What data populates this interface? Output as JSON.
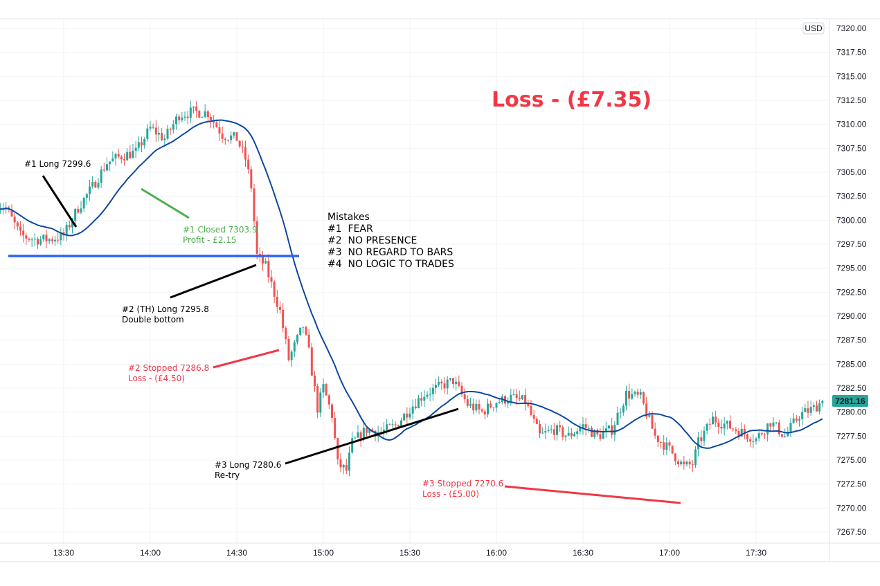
{
  "chart_data": {
    "type": "candlestick",
    "currency": "USD",
    "interval_minutes": 1,
    "ylim": [
      7266,
      7322
    ],
    "y_ticks": [
      "7320.00",
      "7317.50",
      "7315.00",
      "7312.50",
      "7310.00",
      "7307.50",
      "7305.00",
      "7302.50",
      "7300.00",
      "7297.50",
      "7295.00",
      "7292.50",
      "7290.00",
      "7287.50",
      "7285.00",
      "7282.50",
      "7280.00",
      "7277.50",
      "7275.00",
      "7272.50",
      "7270.00",
      "7267.50"
    ],
    "x_ticks": [
      "13:30",
      "14:00",
      "14:30",
      "15:00",
      "15:30",
      "16:00",
      "16:30",
      "17:00",
      "17:30"
    ],
    "last_price": "7281.16",
    "close_path_minutes_since_13": [
      7,
      10,
      15,
      20,
      25,
      30,
      35,
      40,
      45,
      50,
      55,
      60,
      65,
      70,
      75,
      80,
      85,
      90,
      93,
      95,
      97,
      100,
      105,
      108,
      110,
      113,
      115,
      118,
      120,
      123,
      125,
      128,
      130,
      135,
      140,
      145,
      150,
      155,
      160,
      165,
      170,
      175,
      180,
      185,
      190,
      195,
      200,
      205,
      210,
      215,
      220,
      225,
      230,
      235,
      240,
      245,
      248,
      250,
      255,
      260,
      265,
      270,
      275,
      280,
      285,
      290,
      293
    ],
    "close_path_prices": [
      7301.7,
      7301.3,
      7298.4,
      7298,
      7298,
      7298.4,
      7301.3,
      7303.5,
      7306,
      7306.7,
      7307.1,
      7309.6,
      7308.5,
      7311,
      7311.3,
      7311.2,
      7308.9,
      7308.5,
      7306.4,
      7303.5,
      7296.3,
      7295.2,
      7290.5,
      7285.5,
      7286.9,
      7289,
      7286.2,
      7280.4,
      7282.6,
      7279.7,
      7274.6,
      7273.9,
      7276.8,
      7278.2,
      7277.9,
      7278.6,
      7280.4,
      7281.9,
      7282.6,
      7283.3,
      7280.8,
      7280,
      7281.1,
      7281.5,
      7281.1,
      7277.5,
      7278.2,
      7277.5,
      7278.6,
      7277.5,
      7278.2,
      7281.9,
      7281.5,
      7277.5,
      7276.1,
      7274.3,
      7274.6,
      7276.8,
      7279.3,
      7278.6,
      7277.9,
      7277.2,
      7279,
      7277.5,
      7279.7,
      7280.4,
      7281.16
    ],
    "moving_average_period": 20,
    "horizontal_level": 7296.7,
    "colors": {
      "up": "#26a69a",
      "down": "#ef5350",
      "ma": "#0d47a1",
      "level": "#2962ff",
      "profit": "#4caf50",
      "loss": "#f23645",
      "badge": "#26a69a"
    },
    "annotations": {
      "t1_long": "#1 Long 7299.6",
      "t1_closed": "#1 Closed 7303.9",
      "t1_profit": "Profit - £2.15",
      "t2_long": "#2 (TH) Long 7295.8",
      "t2_note": "Double bottom",
      "t2_stopped": "#2 Stopped 7286.8",
      "t2_loss": "Loss - (£4.50)",
      "t3_long": "#3 Long 7280.6",
      "t3_note": "Re-try",
      "t3_stopped": "#3 Stopped 7270.6",
      "t3_loss": "Loss - (£5.00)",
      "total": "Loss - (£7.35)",
      "mistakes_title": "Mistakes",
      "mistakes": [
        "#1  FEAR",
        "#2  NO PRESENCE",
        "#3  NO REGARD TO BARS",
        "#4  NO LOGIC TO TRADES"
      ]
    }
  }
}
